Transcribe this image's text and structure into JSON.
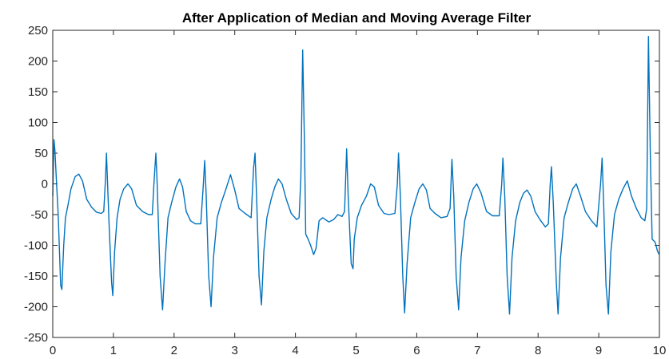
{
  "chart_data": {
    "type": "line",
    "title": "After Application of Median and Moving Average Filter",
    "xlabel": "",
    "ylabel": "",
    "xlim": [
      0,
      10
    ],
    "ylim": [
      -250,
      250
    ],
    "x_ticks": [
      0,
      1,
      2,
      3,
      4,
      5,
      6,
      7,
      8,
      9,
      10
    ],
    "y_ticks": [
      250,
      200,
      150,
      100,
      50,
      0,
      -50,
      -100,
      -150,
      -200,
      -250
    ],
    "grid": false,
    "line_color": "#0072BD",
    "series": [
      {
        "values": [
          [
            0.0,
            -20
          ],
          [
            0.02,
            72
          ],
          [
            0.035,
            55
          ],
          [
            0.06,
            5
          ],
          [
            0.09,
            -50
          ],
          [
            0.13,
            -165
          ],
          [
            0.15,
            -172
          ],
          [
            0.18,
            -100
          ],
          [
            0.21,
            -55
          ],
          [
            0.25,
            -35
          ],
          [
            0.3,
            -8
          ],
          [
            0.37,
            12
          ],
          [
            0.43,
            16
          ],
          [
            0.49,
            5
          ],
          [
            0.56,
            -25
          ],
          [
            0.64,
            -38
          ],
          [
            0.72,
            -46
          ],
          [
            0.8,
            -48
          ],
          [
            0.84,
            -45
          ],
          [
            0.87,
            8
          ],
          [
            0.885,
            50
          ],
          [
            0.9,
            10
          ],
          [
            0.93,
            -70
          ],
          [
            0.97,
            -160
          ],
          [
            0.99,
            -182
          ],
          [
            1.02,
            -110
          ],
          [
            1.06,
            -55
          ],
          [
            1.11,
            -25
          ],
          [
            1.17,
            -8
          ],
          [
            1.24,
            0
          ],
          [
            1.3,
            -8
          ],
          [
            1.38,
            -35
          ],
          [
            1.48,
            -45
          ],
          [
            1.58,
            -50
          ],
          [
            1.64,
            -50
          ],
          [
            1.67,
            5
          ],
          [
            1.7,
            50
          ],
          [
            1.72,
            5
          ],
          [
            1.77,
            -150
          ],
          [
            1.81,
            -205
          ],
          [
            1.85,
            -130
          ],
          [
            1.9,
            -55
          ],
          [
            1.96,
            -30
          ],
          [
            2.03,
            -5
          ],
          [
            2.09,
            8
          ],
          [
            2.14,
            -5
          ],
          [
            2.2,
            -45
          ],
          [
            2.27,
            -60
          ],
          [
            2.35,
            -65
          ],
          [
            2.44,
            -65
          ],
          [
            2.48,
            -5
          ],
          [
            2.505,
            38
          ],
          [
            2.53,
            -20
          ],
          [
            2.57,
            -150
          ],
          [
            2.61,
            -200
          ],
          [
            2.65,
            -120
          ],
          [
            2.71,
            -55
          ],
          [
            2.78,
            -30
          ],
          [
            2.85,
            -10
          ],
          [
            2.93,
            15
          ],
          [
            3.0,
            -10
          ],
          [
            3.07,
            -40
          ],
          [
            3.17,
            -48
          ],
          [
            3.27,
            -55
          ],
          [
            3.31,
            25
          ],
          [
            3.335,
            50
          ],
          [
            3.36,
            -20
          ],
          [
            3.4,
            -150
          ],
          [
            3.44,
            -197
          ],
          [
            3.48,
            -110
          ],
          [
            3.53,
            -55
          ],
          [
            3.6,
            -25
          ],
          [
            3.66,
            -5
          ],
          [
            3.72,
            8
          ],
          [
            3.78,
            0
          ],
          [
            3.85,
            -25
          ],
          [
            3.93,
            -48
          ],
          [
            4.02,
            -58
          ],
          [
            4.06,
            -55
          ],
          [
            4.09,
            10
          ],
          [
            4.12,
            218
          ],
          [
            4.15,
            60
          ],
          [
            4.17,
            -82
          ],
          [
            4.21,
            -90
          ],
          [
            4.25,
            -100
          ],
          [
            4.3,
            -115
          ],
          [
            4.34,
            -105
          ],
          [
            4.39,
            -60
          ],
          [
            4.45,
            -55
          ],
          [
            4.55,
            -62
          ],
          [
            4.63,
            -58
          ],
          [
            4.7,
            -50
          ],
          [
            4.77,
            -53
          ],
          [
            4.81,
            -45
          ],
          [
            4.845,
            57
          ],
          [
            4.87,
            -20
          ],
          [
            4.92,
            -130
          ],
          [
            4.95,
            -138
          ],
          [
            4.97,
            -90
          ],
          [
            5.02,
            -55
          ],
          [
            5.09,
            -35
          ],
          [
            5.17,
            -20
          ],
          [
            5.24,
            0
          ],
          [
            5.3,
            -5
          ],
          [
            5.37,
            -35
          ],
          [
            5.46,
            -48
          ],
          [
            5.54,
            -50
          ],
          [
            5.64,
            -48
          ],
          [
            5.68,
            0
          ],
          [
            5.7,
            50
          ],
          [
            5.73,
            -20
          ],
          [
            5.77,
            -150
          ],
          [
            5.8,
            -210
          ],
          [
            5.84,
            -130
          ],
          [
            5.9,
            -55
          ],
          [
            5.97,
            -30
          ],
          [
            6.04,
            -8
          ],
          [
            6.1,
            0
          ],
          [
            6.16,
            -10
          ],
          [
            6.22,
            -40
          ],
          [
            6.3,
            -48
          ],
          [
            6.4,
            -55
          ],
          [
            6.5,
            -53
          ],
          [
            6.55,
            -40
          ],
          [
            6.58,
            40
          ],
          [
            6.61,
            -20
          ],
          [
            6.65,
            -150
          ],
          [
            6.69,
            -205
          ],
          [
            6.73,
            -120
          ],
          [
            6.79,
            -60
          ],
          [
            6.86,
            -30
          ],
          [
            6.93,
            -8
          ],
          [
            6.99,
            0
          ],
          [
            7.06,
            -15
          ],
          [
            7.15,
            -45
          ],
          [
            7.25,
            -52
          ],
          [
            7.36,
            -52
          ],
          [
            7.4,
            0
          ],
          [
            7.42,
            42
          ],
          [
            7.45,
            -20
          ],
          [
            7.49,
            -150
          ],
          [
            7.53,
            -212
          ],
          [
            7.57,
            -120
          ],
          [
            7.63,
            -60
          ],
          [
            7.7,
            -30
          ],
          [
            7.76,
            -15
          ],
          [
            7.82,
            -10
          ],
          [
            7.88,
            -20
          ],
          [
            7.95,
            -45
          ],
          [
            8.03,
            -58
          ],
          [
            8.12,
            -70
          ],
          [
            8.17,
            -65
          ],
          [
            8.2,
            0
          ],
          [
            8.22,
            28
          ],
          [
            8.25,
            -30
          ],
          [
            8.3,
            -160
          ],
          [
            8.33,
            -212
          ],
          [
            8.37,
            -120
          ],
          [
            8.43,
            -55
          ],
          [
            8.5,
            -30
          ],
          [
            8.57,
            -8
          ],
          [
            8.63,
            0
          ],
          [
            8.7,
            -20
          ],
          [
            8.78,
            -45
          ],
          [
            8.88,
            -60
          ],
          [
            8.97,
            -70
          ],
          [
            9.03,
            0
          ],
          [
            9.055,
            42
          ],
          [
            9.08,
            -30
          ],
          [
            9.12,
            -165
          ],
          [
            9.16,
            -212
          ],
          [
            9.2,
            -110
          ],
          [
            9.26,
            -50
          ],
          [
            9.33,
            -25
          ],
          [
            9.4,
            -8
          ],
          [
            9.47,
            5
          ],
          [
            9.54,
            -20
          ],
          [
            9.62,
            -40
          ],
          [
            9.7,
            -55
          ],
          [
            9.76,
            -60
          ],
          [
            9.79,
            -40
          ],
          [
            9.82,
            240
          ],
          [
            9.85,
            50
          ],
          [
            9.88,
            -90
          ],
          [
            9.93,
            -95
          ],
          [
            9.97,
            -110
          ],
          [
            10.0,
            -115
          ]
        ]
      }
    ]
  }
}
